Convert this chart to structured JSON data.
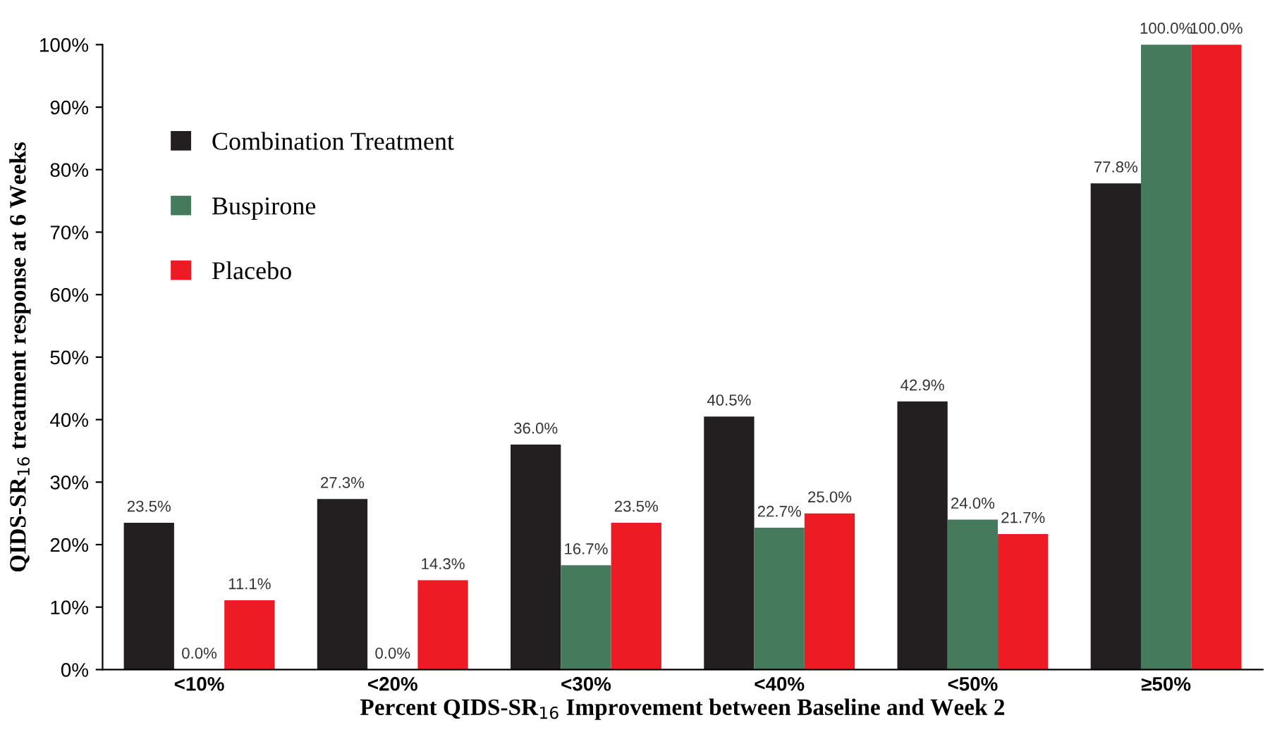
{
  "chart_data": {
    "type": "bar",
    "xlabel": "Percent QIDS-SR$_{16}$ Improvement between Baseline and Week 2",
    "ylabel": "QIDS-SR$_{16}$ treatment response at 6 Weeks",
    "categories": [
      "<10%",
      "<20%",
      "<30%",
      "<40%",
      "<50%",
      "≥50%"
    ],
    "series": [
      {
        "name": "Combination Treatment",
        "color": "#231f20",
        "values": [
          23.5,
          27.3,
          36.0,
          40.5,
          42.9,
          77.8
        ],
        "value_labels": [
          "23.5%",
          "27.3%",
          "36.0%",
          "40.5%",
          "42.9%",
          "77.8%"
        ]
      },
      {
        "name": "Buspirone",
        "color": "#457a5c",
        "values": [
          0.0,
          0.0,
          16.7,
          22.7,
          24.0,
          100.0
        ],
        "value_labels": [
          "0.0%",
          "0.0%",
          "16.7%",
          "22.7%",
          "24.0%",
          "100.0%"
        ]
      },
      {
        "name": "Placebo",
        "color": "#ed1c24",
        "values": [
          11.1,
          14.3,
          23.5,
          25.0,
          21.7,
          100.0
        ],
        "value_labels": [
          "11.1%",
          "14.3%",
          "23.5%",
          "25.0%",
          "21.7%",
          "100.0%"
        ]
      }
    ],
    "ylim": [
      0,
      100
    ],
    "yticks": [
      {
        "value": 0,
        "label": "0%"
      },
      {
        "value": 10,
        "label": "10%"
      },
      {
        "value": 20,
        "label": "20%"
      },
      {
        "value": 30,
        "label": "30%"
      },
      {
        "value": 40,
        "label": "40%"
      },
      {
        "value": 50,
        "label": "50%"
      },
      {
        "value": 60,
        "label": "60%"
      },
      {
        "value": 70,
        "label": "70%"
      },
      {
        "value": 80,
        "label": "80%"
      },
      {
        "value": 90,
        "label": "90%"
      },
      {
        "value": 100,
        "label": "100%"
      }
    ],
    "legend": "top left",
    "grid": false
  }
}
